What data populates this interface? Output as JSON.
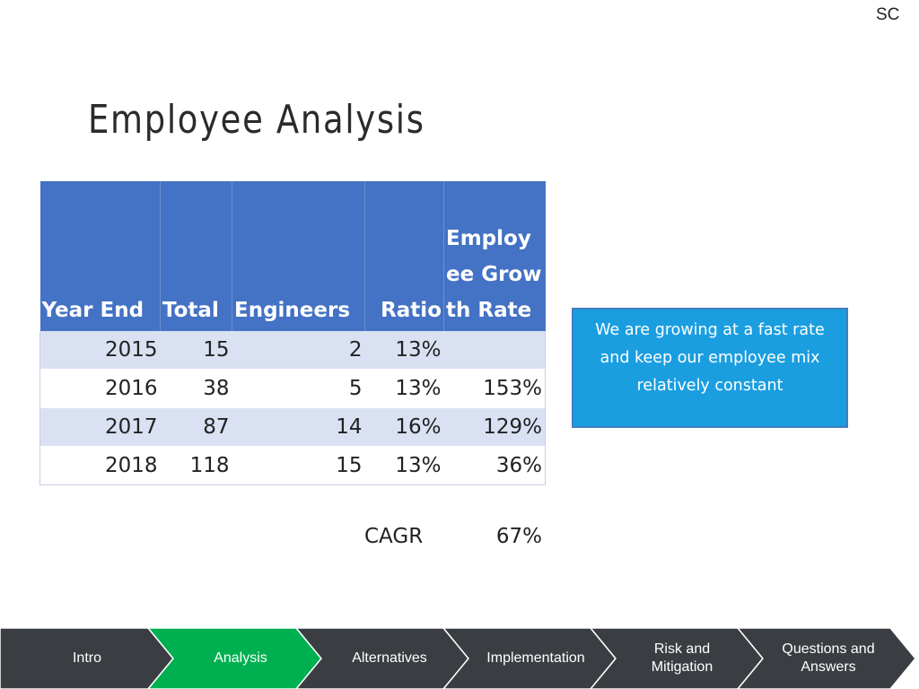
{
  "corner_label": "SC",
  "title": "Employee Analysis",
  "table": {
    "headers": [
      "Year End",
      "Total",
      "Engineers",
      "Ratio",
      "Employee Growth Rate"
    ],
    "rows": [
      [
        "2015",
        "15",
        "2",
        "13%",
        ""
      ],
      [
        "2016",
        "38",
        "5",
        "13%",
        "153%"
      ],
      [
        "2017",
        "87",
        "14",
        "16%",
        "129%"
      ],
      [
        "2018",
        "118",
        "15",
        "13%",
        "36%"
      ]
    ]
  },
  "cagr": {
    "label": "CAGR",
    "value": "67%"
  },
  "callout": {
    "text": "We are growing at a fast rate and keep our employee mix relatively constant"
  },
  "nav": {
    "items": [
      {
        "label": "Intro",
        "active": false
      },
      {
        "label": "Analysis",
        "active": true
      },
      {
        "label": "Alternatives",
        "active": false
      },
      {
        "label": "Implementation",
        "active": false
      },
      {
        "label": "Risk and Mitigation",
        "active": false
      },
      {
        "label": "Questions and Answers",
        "active": false
      }
    ],
    "colors": {
      "default": "#3a3e43",
      "active": "#00b050",
      "separator": "#ffffff"
    }
  }
}
